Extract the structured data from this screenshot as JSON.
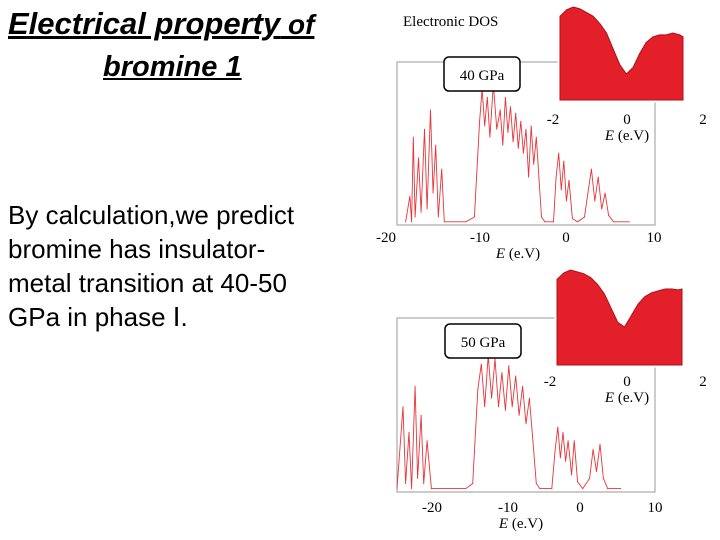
{
  "slide": {
    "title_line1_main": "Electrical property",
    "title_line1_suffix": " of",
    "title_line2": "bromine 1",
    "body_lines": [
      "By calculation,we predict",
      "bromine has insulator-",
      "metal transition at 40-50",
      "GPa in phase Ⅰ."
    ],
    "figure_label": "Electronic DOS"
  },
  "colors": {
    "curve": "#e8343a",
    "fill": "#e3202a",
    "axis": "#000000"
  },
  "chart_data": [
    {
      "type": "line",
      "pressure_label": "40 GPa",
      "xlabel": "E (e.V)",
      "x_ticks": [
        "-20",
        "-10",
        "0",
        "10"
      ],
      "xlim": [
        -20,
        10
      ],
      "ylim": [
        0,
        1
      ],
      "series": [
        {
          "values": [
            [
              -19,
              0.02
            ],
            [
              -18.5,
              0.18
            ],
            [
              -18.3,
              0.02
            ],
            [
              -18.1,
              0.55
            ],
            [
              -17.9,
              0.05
            ],
            [
              -17.5,
              0.42
            ],
            [
              -17.2,
              0.08
            ],
            [
              -16.8,
              0.6
            ],
            [
              -16.5,
              0.1
            ],
            [
              -16.1,
              0.72
            ],
            [
              -15.8,
              0.2
            ],
            [
              -15.5,
              0.5
            ],
            [
              -15.2,
              0.05
            ],
            [
              -14.8,
              0.35
            ],
            [
              -14.5,
              0.02
            ],
            [
              -12,
              0.02
            ],
            [
              -11,
              0.05
            ],
            [
              -10.4,
              0.65
            ],
            [
              -10.1,
              0.85
            ],
            [
              -9.8,
              0.62
            ],
            [
              -9.5,
              0.8
            ],
            [
              -9.2,
              0.55
            ],
            [
              -8.8,
              0.88
            ],
            [
              -8.4,
              0.6
            ],
            [
              -8,
              0.72
            ],
            [
              -7.7,
              0.5
            ],
            [
              -7.4,
              0.8
            ],
            [
              -7.1,
              0.58
            ],
            [
              -6.8,
              0.74
            ],
            [
              -6.5,
              0.52
            ],
            [
              -6.2,
              0.7
            ],
            [
              -5.9,
              0.48
            ],
            [
              -5.6,
              0.65
            ],
            [
              -5.3,
              0.45
            ],
            [
              -5,
              0.6
            ],
            [
              -4.7,
              0.3
            ],
            [
              -4.4,
              0.62
            ],
            [
              -4.1,
              0.38
            ],
            [
              -3.8,
              0.55
            ],
            [
              -3.5,
              0.3
            ],
            [
              -3.2,
              0.05
            ],
            [
              -2.8,
              0.02
            ],
            [
              -1.8,
              0.02
            ],
            [
              -1.5,
              0.3
            ],
            [
              -1.2,
              0.45
            ],
            [
              -0.9,
              0.22
            ],
            [
              -0.6,
              0.4
            ],
            [
              -0.3,
              0.15
            ],
            [
              0,
              0.28
            ],
            [
              0.4,
              0.04
            ],
            [
              1,
              0.02
            ],
            [
              1.8,
              0.05
            ],
            [
              2.2,
              0.2
            ],
            [
              2.6,
              0.35
            ],
            [
              3,
              0.15
            ],
            [
              3.4,
              0.3
            ],
            [
              3.8,
              0.1
            ],
            [
              4.2,
              0.2
            ],
            [
              4.6,
              0.06
            ],
            [
              5.2,
              0.02
            ],
            [
              7,
              0.02
            ]
          ]
        }
      ],
      "inset": {
        "type": "area",
        "xlabel": "E (e.V)",
        "x_ticks": [
          "-2",
          "0",
          "2"
        ],
        "xlim": [
          -2,
          2
        ],
        "values": [
          [
            -2,
            0.9
          ],
          [
            -1.8,
            0.97
          ],
          [
            -1.6,
            1.0
          ],
          [
            -1.4,
            0.98
          ],
          [
            -1.2,
            0.94
          ],
          [
            -1.0,
            0.9
          ],
          [
            -0.8,
            0.82
          ],
          [
            -0.6,
            0.72
          ],
          [
            -0.4,
            0.55
          ],
          [
            -0.2,
            0.38
          ],
          [
            0,
            0.28
          ],
          [
            0.2,
            0.35
          ],
          [
            0.4,
            0.5
          ],
          [
            0.6,
            0.62
          ],
          [
            0.8,
            0.68
          ],
          [
            1.0,
            0.7
          ],
          [
            1.2,
            0.7
          ],
          [
            1.4,
            0.72
          ],
          [
            1.6,
            0.7
          ],
          [
            1.8,
            0.68
          ]
        ]
      }
    },
    {
      "type": "line",
      "pressure_label": "50 GPa",
      "xlabel": "E (e.V)",
      "x_ticks": [
        "-20",
        "-10",
        "0",
        "10"
      ],
      "xlim": [
        -20,
        10
      ],
      "ylim": [
        0,
        1
      ],
      "series": [
        {
          "values": [
            [
              -20,
              0.02
            ],
            [
              -19.3,
              0.5
            ],
            [
              -19,
              0.05
            ],
            [
              -18.6,
              0.35
            ],
            [
              -18.3,
              0.02
            ],
            [
              -17.9,
              0.62
            ],
            [
              -17.6,
              0.08
            ],
            [
              -17.2,
              0.45
            ],
            [
              -16.9,
              0.05
            ],
            [
              -16.5,
              0.3
            ],
            [
              -16,
              0.02
            ],
            [
              -12,
              0.02
            ],
            [
              -11.2,
              0.05
            ],
            [
              -10.6,
              0.6
            ],
            [
              -10.2,
              0.75
            ],
            [
              -9.8,
              0.5
            ],
            [
              -9.4,
              0.8
            ],
            [
              -9,
              0.55
            ],
            [
              -8.6,
              0.78
            ],
            [
              -8.2,
              0.5
            ],
            [
              -7.8,
              0.7
            ],
            [
              -7.4,
              0.48
            ],
            [
              -7,
              0.74
            ],
            [
              -6.6,
              0.5
            ],
            [
              -6.2,
              0.68
            ],
            [
              -5.8,
              0.45
            ],
            [
              -5.4,
              0.62
            ],
            [
              -5,
              0.4
            ],
            [
              -4.6,
              0.55
            ],
            [
              -4.2,
              0.3
            ],
            [
              -3.8,
              0.05
            ],
            [
              -3.4,
              0.02
            ],
            [
              -2,
              0.02
            ],
            [
              -1.6,
              0.25
            ],
            [
              -1.3,
              0.38
            ],
            [
              -1,
              0.2
            ],
            [
              -0.7,
              0.35
            ],
            [
              -0.4,
              0.18
            ],
            [
              -0.1,
              0.3
            ],
            [
              0.3,
              0.1
            ],
            [
              0.6,
              0.3
            ],
            [
              1,
              0.06
            ],
            [
              1.6,
              0.02
            ],
            [
              2.4,
              0.08
            ],
            [
              2.8,
              0.25
            ],
            [
              3.2,
              0.12
            ],
            [
              3.6,
              0.28
            ],
            [
              4,
              0.08
            ],
            [
              4.5,
              0.02
            ],
            [
              6,
              0.02
            ]
          ]
        }
      ],
      "inset": {
        "type": "area",
        "xlabel": "E (e.V)",
        "x_ticks": [
          "-2",
          "0",
          "2"
        ],
        "xlim": [
          -2,
          2
        ],
        "values": [
          [
            -2,
            0.9
          ],
          [
            -1.8,
            0.97
          ],
          [
            -1.6,
            1.0
          ],
          [
            -1.4,
            0.98
          ],
          [
            -1.2,
            0.96
          ],
          [
            -1.0,
            0.92
          ],
          [
            -0.8,
            0.85
          ],
          [
            -0.6,
            0.75
          ],
          [
            -0.4,
            0.6
          ],
          [
            -0.2,
            0.45
          ],
          [
            0,
            0.4
          ],
          [
            0.2,
            0.52
          ],
          [
            0.4,
            0.64
          ],
          [
            0.6,
            0.72
          ],
          [
            0.8,
            0.76
          ],
          [
            1.0,
            0.78
          ],
          [
            1.2,
            0.8
          ],
          [
            1.4,
            0.8
          ],
          [
            1.6,
            0.79
          ],
          [
            1.8,
            0.8
          ]
        ]
      }
    }
  ]
}
